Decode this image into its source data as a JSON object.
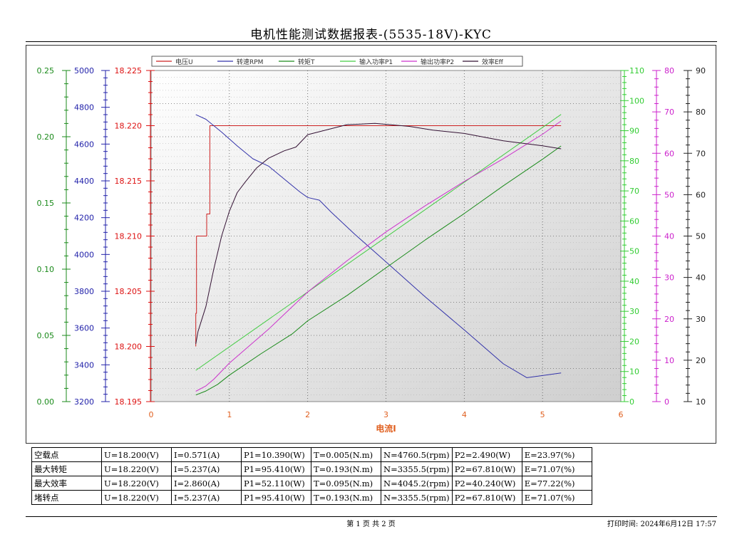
{
  "title": "电机性能测试数据报表-(5535-18V)-KYC",
  "chart_data": {
    "type": "line",
    "xlabel": "电流I",
    "xlim": [
      0,
      6
    ],
    "x_ticks": [
      "0",
      "1",
      "2",
      "3",
      "4",
      "5",
      "6"
    ],
    "grid": true,
    "legend_position": "top",
    "axes": [
      {
        "id": "torque",
        "series": "转矩T",
        "color": "#1a8a1a",
        "ticks": [
          "0.00",
          "0.05",
          "0.10",
          "0.15",
          "0.20",
          "0.25"
        ],
        "range": [
          0,
          0.25
        ]
      },
      {
        "id": "rpm",
        "series": "转速RPM",
        "color": "#2222aa",
        "ticks": [
          "3200",
          "3400",
          "3600",
          "3800",
          "4000",
          "4200",
          "4400",
          "4600",
          "4800",
          "5000"
        ],
        "range": [
          3200,
          5000
        ]
      },
      {
        "id": "voltage",
        "series": "电压U",
        "color": "#dd1111",
        "ticks": [
          "18.195",
          "18.200",
          "18.205",
          "18.210",
          "18.215",
          "18.220",
          "18.225"
        ],
        "range": [
          18.195,
          18.225
        ]
      },
      {
        "id": "p1",
        "series": "输入功率P1",
        "color": "#33cc33",
        "ticks": [
          "0",
          "10",
          "20",
          "30",
          "40",
          "50",
          "60",
          "70",
          "80",
          "90",
          "100",
          "110"
        ],
        "range": [
          0,
          110
        ]
      },
      {
        "id": "p2",
        "series": "输出功率P2",
        "color": "#cc22cc",
        "ticks": [
          "0",
          "10",
          "20",
          "30",
          "40",
          "50",
          "60",
          "70",
          "80"
        ],
        "range": [
          0,
          80
        ]
      },
      {
        "id": "eff",
        "series": "效率Eff",
        "color": "#222222",
        "ticks": [
          "10",
          "20",
          "30",
          "40",
          "50",
          "60",
          "70",
          "80",
          "90"
        ],
        "range": [
          10,
          90
        ]
      }
    ],
    "series": [
      {
        "name": "电压U",
        "axis": "voltage",
        "color": "#cc2020",
        "x": [
          0.571,
          0.571,
          0.58,
          0.58,
          0.71,
          0.71,
          0.75,
          0.75,
          5.237
        ],
        "y": [
          18.2,
          18.203,
          18.203,
          18.21,
          18.21,
          18.212,
          18.212,
          18.22,
          18.22
        ]
      },
      {
        "name": "转速RPM",
        "axis": "rpm",
        "color": "#3333aa",
        "x": [
          0.571,
          0.7,
          0.9,
          1.1,
          1.3,
          1.5,
          1.7,
          1.9,
          2.0,
          2.15,
          2.3,
          2.6,
          3.0,
          3.5,
          4.0,
          4.5,
          4.8,
          5.237
        ],
        "y": [
          4760.5,
          4735,
          4665,
          4590,
          4520,
          4480,
          4410,
          4340,
          4310,
          4295,
          4230,
          4110,
          3960,
          3770,
          3590,
          3405,
          3330,
          3355.5
        ]
      },
      {
        "name": "转矩T",
        "axis": "torque",
        "color": "#1a8a1a",
        "x": [
          0.571,
          0.7,
          0.85,
          1.0,
          1.4,
          1.8,
          2.0,
          2.5,
          3.0,
          3.5,
          4.0,
          4.5,
          5.0,
          5.237
        ],
        "y": [
          0.005,
          0.008,
          0.013,
          0.02,
          0.036,
          0.051,
          0.061,
          0.08,
          0.101,
          0.122,
          0.142,
          0.163,
          0.183,
          0.193
        ]
      },
      {
        "name": "输入功率P1",
        "axis": "p1",
        "color": "#44cc44",
        "x": [
          0.571,
          5.237
        ],
        "y": [
          10.39,
          95.41
        ]
      },
      {
        "name": "输出功率P2",
        "axis": "p2",
        "color": "#cc33cc",
        "x": [
          0.571,
          0.7,
          0.8,
          1.0,
          1.5,
          2.0,
          2.5,
          3.0,
          3.5,
          4.0,
          4.5,
          5.0,
          5.237
        ],
        "y": [
          2.49,
          3.8,
          5.4,
          9.3,
          17.5,
          26.5,
          34.0,
          41.0,
          47.3,
          53.2,
          58.7,
          64.6,
          67.81
        ]
      },
      {
        "name": "效率Eff",
        "axis": "eff",
        "color": "#331133",
        "x": [
          0.571,
          0.6,
          0.7,
          0.8,
          0.9,
          1.0,
          1.1,
          1.2,
          1.35,
          1.5,
          1.7,
          1.85,
          2.0,
          2.5,
          2.86,
          3.3,
          3.6,
          4.0,
          4.5,
          5.0,
          5.237
        ],
        "y": [
          23.97,
          27.0,
          33.0,
          42.0,
          50.0,
          56.0,
          60.5,
          63.0,
          66.5,
          68.8,
          70.6,
          71.5,
          74.5,
          76.9,
          77.22,
          76.5,
          75.6,
          74.8,
          73.0,
          71.8,
          71.07
        ]
      }
    ]
  },
  "table": [
    [
      "空载点",
      "U=18.200(V)",
      "I=0.571(A)",
      "P1=10.390(W)",
      "T=0.005(N.m)",
      "N=4760.5(rpm)",
      "P2=2.490(W)",
      "E=23.97(%)"
    ],
    [
      "最大转矩",
      "U=18.220(V)",
      "I=5.237(A)",
      "P1=95.410(W)",
      "T=0.193(N.m)",
      "N=3355.5(rpm)",
      "P2=67.810(W)",
      "E=71.07(%)"
    ],
    [
      "最大效率",
      "U=18.220(V)",
      "I=2.860(A)",
      "P1=52.110(W)",
      "T=0.095(N.m)",
      "N=4045.2(rpm)",
      "P2=40.240(W)",
      "E=77.22(%)"
    ],
    [
      "堵转点",
      "U=18.220(V)",
      "I=5.237(A)",
      "P1=95.410(W)",
      "T=0.193(N.m)",
      "N=3355.5(rpm)",
      "P2=67.810(W)",
      "E=71.07(%)"
    ]
  ],
  "footer": {
    "page": "第 1 页  共 2 页",
    "print_time": "打印时间: 2024年6月12日  17:57"
  }
}
